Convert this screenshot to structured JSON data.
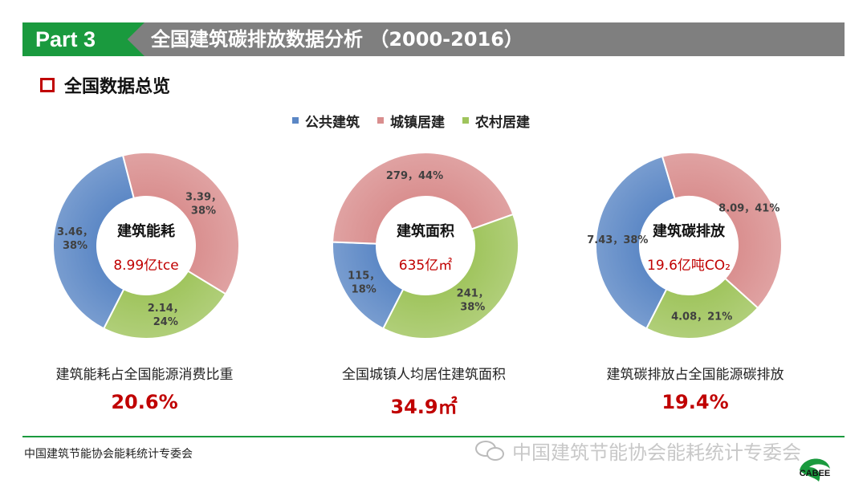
{
  "header": {
    "part_label": "Part 3",
    "title": "全国建筑碳排放数据分析 （2000-2016）"
  },
  "section": {
    "title": "全国数据总览"
  },
  "legend": [
    {
      "label": "公共建筑",
      "color": "#5b87c5"
    },
    {
      "label": "城镇居建",
      "color": "#d98e8e"
    },
    {
      "label": "农村居建",
      "color": "#9fc45c"
    }
  ],
  "chart_data": [
    {
      "type": "pie",
      "center_title": "建筑能耗",
      "center_value": "8.99亿tce",
      "categories": [
        "公共建筑",
        "城镇居建",
        "农村居建"
      ],
      "values": [
        3.46,
        3.39,
        2.14
      ],
      "percent": [
        38,
        38,
        24
      ],
      "data_labels": [
        [
          "3.46，",
          "38%"
        ],
        [
          "3.39，",
          "38%"
        ],
        [
          "2.14，",
          "24%"
        ]
      ]
    },
    {
      "type": "pie",
      "center_title": "建筑面积",
      "center_value": "635亿㎡",
      "categories": [
        "公共建筑",
        "城镇居建",
        "农村居建"
      ],
      "values": [
        115,
        279,
        241
      ],
      "percent": [
        18,
        44,
        38
      ],
      "data_labels": [
        [
          "115，",
          "18%"
        ],
        [
          "279，44%"
        ],
        [
          "241，",
          "38%"
        ]
      ]
    },
    {
      "type": "pie",
      "center_title": "建筑碳排放",
      "center_value": "19.6亿吨CO₂",
      "categories": [
        "公共建筑",
        "城镇居建",
        "农村居建"
      ],
      "values": [
        7.43,
        8.09,
        4.08
      ],
      "percent": [
        38,
        41,
        21
      ],
      "data_labels": [
        [
          "7.43，38%"
        ],
        [
          "8.09，41%"
        ],
        [
          "4.08，21%"
        ]
      ]
    }
  ],
  "stats": [
    {
      "label": "建筑能耗占全国能源消费比重",
      "value": "20.6%"
    },
    {
      "label": "全国城镇人均居住建筑面积",
      "value": "34.9㎡"
    },
    {
      "label": "建筑碳排放占全国能源碳排放",
      "value": "19.4%"
    }
  ],
  "footer": {
    "org": "中国建筑节能协会能耗统计专委会",
    "watermark": "中国建筑节能协会能耗统计专委会",
    "logo_text": "CABEE",
    "accent": "#1a9a3e"
  }
}
